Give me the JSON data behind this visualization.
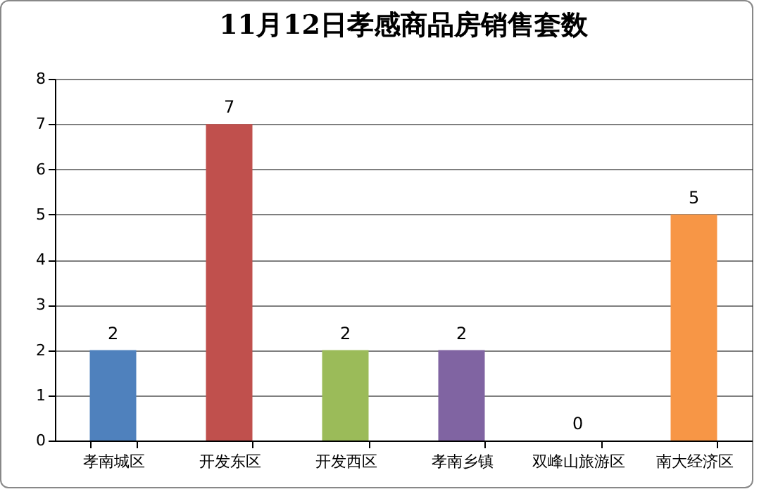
{
  "chart_data": {
    "type": "bar",
    "title": "11月12日孝感商品房销售套数",
    "categories": [
      "孝南城区",
      "开发东区",
      "开发西区",
      "孝南乡镇",
      "双峰山旅游区",
      "南大经济区"
    ],
    "values": [
      2,
      7,
      2,
      2,
      0,
      5
    ],
    "colors": [
      "#4f81bd",
      "#c0504d",
      "#9bbb59",
      "#8064a2",
      "#4bacc6",
      "#f79646"
    ],
    "ylim": [
      0,
      8
    ],
    "yticks": [
      0,
      1,
      2,
      3,
      4,
      5,
      6,
      7,
      8
    ],
    "grid": "y",
    "data_labels": true
  }
}
